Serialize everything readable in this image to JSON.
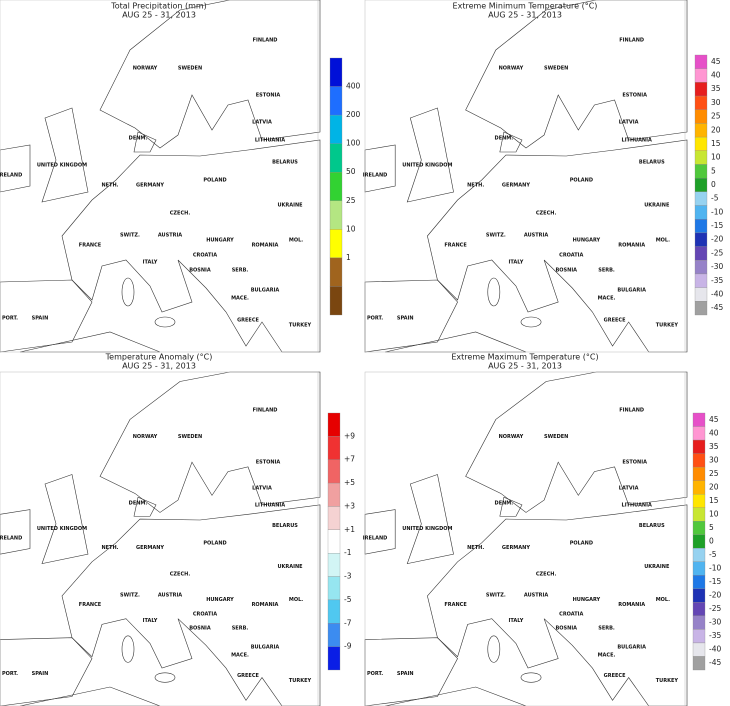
{
  "panels": [
    {
      "title": "Total Precipitation (mm)",
      "subtitle": "AUG 25 - 31, 2013",
      "legend_colors": [
        "#0010d8",
        "#1e6eff",
        "#00b4e6",
        "#00c88c",
        "#32d232",
        "#b4e682",
        "#ffff00",
        "#a0641e",
        "#7a4610"
      ],
      "legend_labels": [
        "400",
        "200",
        "100",
        "50",
        "25",
        "10",
        "1"
      ],
      "places": [
        "FINLAND",
        "NORWAY",
        "SWEDEN",
        "ESTONIA",
        "LATVIA",
        "LITHUANIA",
        "BELARUS",
        "DENM.",
        "UNITED KINGDOM",
        "IRELAND",
        "NETH.",
        "GERMANY",
        "POLAND",
        "CZECH.",
        "UKRAINE",
        "FRANCE",
        "SWITZ.",
        "AUSTRIA",
        "HUNGARY",
        "ROMANIA",
        "MOL.",
        "ITALY",
        "CROATIA",
        "BOSNIA",
        "SERB.",
        "BULGARIA",
        "MACE.",
        "GREECE",
        "TURKEY",
        "SPAIN",
        "PORT."
      ]
    },
    {
      "title": "Extreme Minimum Temperature (°C)",
      "subtitle": "AUG 25 - 31, 2013",
      "legend_colors": [
        "#e650c8",
        "#ff96d2",
        "#e61e1e",
        "#ff5014",
        "#ff8c00",
        "#ffb400",
        "#ffe600",
        "#c8e632",
        "#50c83c",
        "#1ea028",
        "#96d2f0",
        "#50b4f0",
        "#1e78e6",
        "#1e32b4",
        "#6446b4",
        "#9682c8",
        "#c8b4e6",
        "#e6e6ec",
        "#a0a0a0"
      ],
      "legend_labels": [
        "45",
        "40",
        "35",
        "30",
        "25",
        "20",
        "15",
        "10",
        "5",
        "0",
        "-5",
        "-10",
        "-15",
        "-20",
        "-25",
        "-30",
        "-35",
        "-40",
        "-45"
      ],
      "places": [
        "FINLAND",
        "NORWAY",
        "SWEDEN",
        "ESTONIA",
        "LATVIA",
        "LITHUANIA",
        "BELARUS",
        "DENM.",
        "UNITED KINGDOM",
        "IRELAND",
        "NETH.",
        "GERMANY",
        "POLAND",
        "CZECH.",
        "UKRAINE",
        "FRANCE",
        "SWITZ.",
        "AUSTRIA",
        "HUNGARY",
        "ROMANIA",
        "MOL.",
        "ITALY",
        "CROATIA",
        "BOSNIA",
        "SERB.",
        "BULGARIA",
        "MACE.",
        "GREECE",
        "TURKEY",
        "SPAIN",
        "PORT."
      ]
    },
    {
      "title": "Temperature Anomaly (°C)",
      "subtitle": "AUG 25 - 31, 2013",
      "legend_colors": [
        "#e60000",
        "#f03232",
        "#f06464",
        "#f0a0a0",
        "#f5d2d2",
        "#ffffff",
        "#d2f5f5",
        "#96e6f0",
        "#50c8f0",
        "#3c8cf0",
        "#0a1ee6"
      ],
      "legend_labels": [
        "+9",
        "+7",
        "+5",
        "+3",
        "+1",
        "-1",
        "-3",
        "-5",
        "-7",
        "-9"
      ],
      "places": [
        "FINLAND",
        "NORWAY",
        "SWEDEN",
        "ESTONIA",
        "LATVIA",
        "LITHUANIA",
        "BELARUS",
        "DENM.",
        "UNITED KINGDOM",
        "IRELAND",
        "NETH.",
        "GERMANY",
        "POLAND",
        "CZECH.",
        "UKRAINE",
        "FRANCE",
        "SWITZ.",
        "AUSTRIA",
        "HUNGARY",
        "ROMANIA",
        "MOL.",
        "ITALY",
        "CROATIA",
        "BOSNIA",
        "SERB.",
        "BULGARIA",
        "MACE.",
        "GREECE",
        "TURKEY",
        "SPAIN",
        "PORT."
      ]
    },
    {
      "title": "Extreme Maximum Temperature (°C)",
      "subtitle": "AUG 25 - 31, 2013",
      "legend_colors": [
        "#e650c8",
        "#ff96d2",
        "#e61e1e",
        "#ff5014",
        "#ff8c00",
        "#ffb400",
        "#ffe600",
        "#c8e632",
        "#50c83c",
        "#1ea028",
        "#96d2f0",
        "#50b4f0",
        "#1e78e6",
        "#1e32b4",
        "#6446b4",
        "#9682c8",
        "#c8b4e6",
        "#e6e6ec",
        "#a0a0a0"
      ],
      "legend_labels": [
        "45",
        "40",
        "35",
        "30",
        "25",
        "20",
        "15",
        "10",
        "5",
        "0",
        "-5",
        "-10",
        "-15",
        "-20",
        "-25",
        "-30",
        "-35",
        "-40",
        "-45"
      ],
      "places": [
        "FINLAND",
        "NORWAY",
        "SWEDEN",
        "ESTONIA",
        "LATVIA",
        "LITHUANIA",
        "BELARUS",
        "DENM.",
        "UNITED KINGDOM",
        "IRELAND",
        "NETH.",
        "GERMANY",
        "POLAND",
        "CZECH.",
        "UKRAINE",
        "FRANCE",
        "SWITZ.",
        "AUSTRIA",
        "HUNGARY",
        "ROMANIA",
        "MOL.",
        "ITALY",
        "CROATIA",
        "BOSNIA",
        "SERB.",
        "BULGARIA",
        "MACE.",
        "GREECE",
        "TURKEY",
        "SPAIN",
        "PORT."
      ]
    }
  ]
}
